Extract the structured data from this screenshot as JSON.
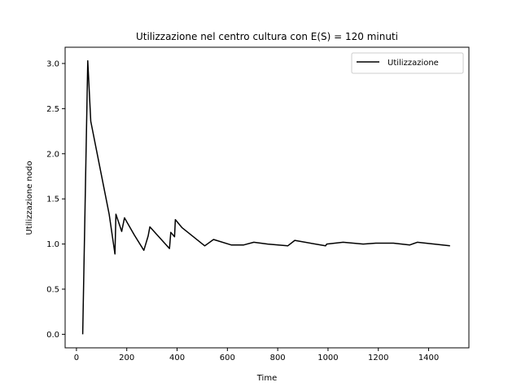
{
  "chart_data": {
    "type": "line",
    "title": "Utilizzazione nel centro cultura con E(S) = 120 minuti",
    "xlabel": "Time",
    "ylabel": "Utilizzazione nodo",
    "xlim": [
      -45,
      1560
    ],
    "ylim": [
      -0.15,
      3.18
    ],
    "xticks": [
      0,
      200,
      400,
      600,
      800,
      1000,
      1200,
      1400
    ],
    "yticks": [
      0.0,
      0.5,
      1.0,
      1.5,
      2.0,
      2.5,
      3.0
    ],
    "ytick_labels": [
      "0.0",
      "0.5",
      "1.0",
      "1.5",
      "2.0",
      "2.5",
      "3.0"
    ],
    "grid": false,
    "legend_position": "top-right",
    "line_color": "#000000",
    "series": [
      {
        "name": "Utilizzazione",
        "x": [
          25,
          45,
          57,
          130,
          153,
          157,
          180,
          191,
          230,
          268,
          285,
          292,
          370,
          375,
          390,
          393,
          420,
          510,
          545,
          615,
          665,
          705,
          760,
          840,
          868,
          990,
          995,
          1060,
          1140,
          1190,
          1260,
          1325,
          1355,
          1485
        ],
        "y": [
          0.0,
          3.03,
          2.36,
          1.33,
          0.89,
          1.33,
          1.14,
          1.29,
          1.1,
          0.93,
          1.09,
          1.19,
          0.95,
          1.13,
          1.08,
          1.27,
          1.18,
          0.98,
          1.05,
          0.99,
          0.99,
          1.02,
          1.0,
          0.98,
          1.04,
          0.98,
          1.0,
          1.02,
          1.0,
          1.01,
          1.01,
          0.99,
          1.02,
          0.98
        ]
      }
    ]
  }
}
